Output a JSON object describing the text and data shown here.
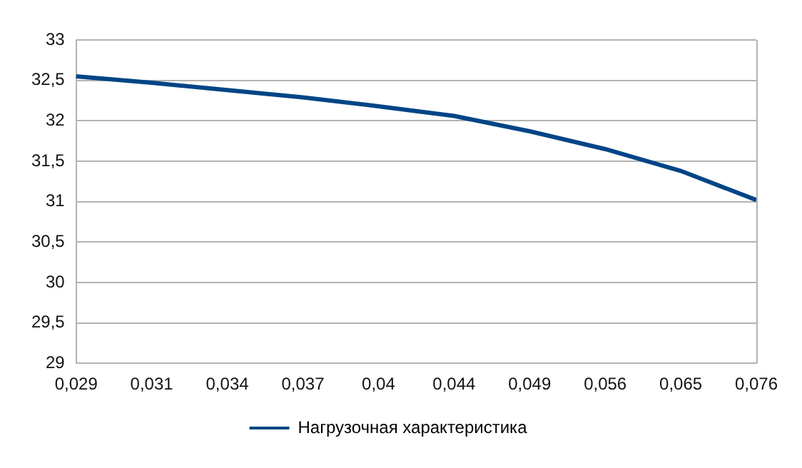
{
  "chart_data": {
    "type": "line",
    "categories": [
      "0,029",
      "0,031",
      "0,034",
      "0,037",
      "0,04",
      "0,044",
      "0,049",
      "0,056",
      "0,065",
      "0,076"
    ],
    "series": [
      {
        "name": "Нагрузочная характеристика",
        "color": "#004586",
        "values": [
          32.55,
          32.47,
          32.38,
          32.29,
          32.18,
          32.06,
          31.87,
          31.65,
          31.38,
          31.02
        ]
      }
    ],
    "ylim": [
      29,
      33
    ],
    "yticks": [
      29,
      {
        "value": 29.5,
        "label": "29,5"
      },
      30,
      {
        "value": 30.5,
        "label": "30,5"
      },
      31,
      {
        "value": 31.5,
        "label": "31,5"
      },
      32,
      {
        "value": 32.5,
        "label": "32,5"
      },
      33
    ],
    "grid": "y",
    "legend": "bottom",
    "marker": "none",
    "line_style": "solid"
  }
}
